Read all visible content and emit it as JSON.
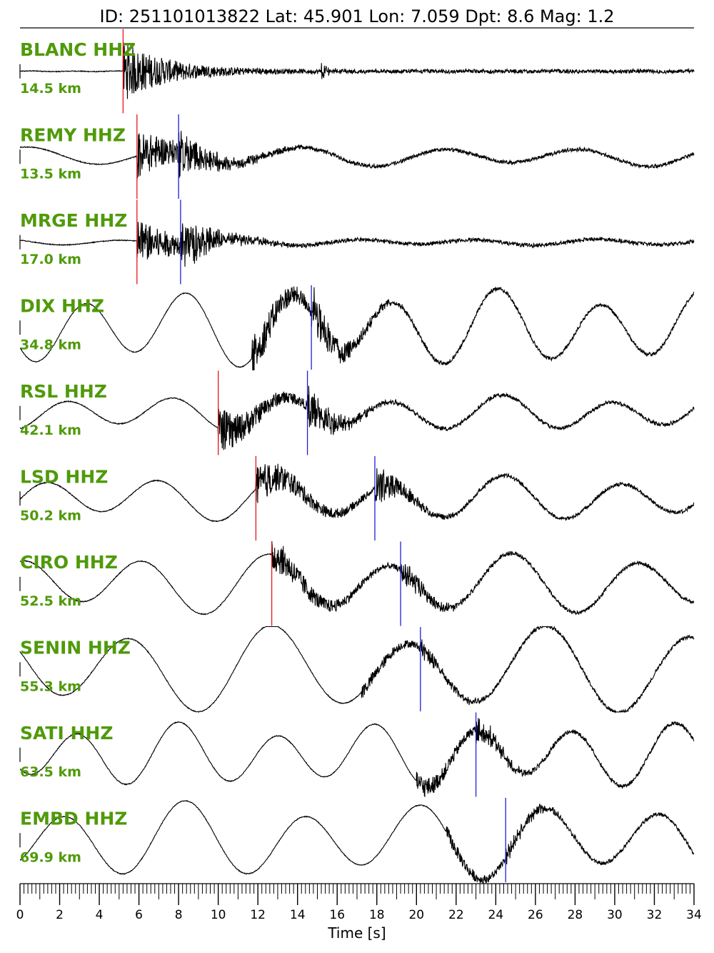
{
  "header": {
    "title": "ID: 251101013822 Lat:  45.901 Lon:   7.059 Dpt:     8.6 Mag:   1.2"
  },
  "colors": {
    "station_label": "#4f9a0a",
    "p_pick": "#e8141b",
    "s_pick": "#1f1fdc",
    "trace": "#000000"
  },
  "chart_data": {
    "type": "line",
    "title": "ID: 251101013822 Lat:  45.901 Lon:   7.059 Dpt:     8.6 Mag:   1.2",
    "xlabel": "Time [s]",
    "ylabel": "",
    "xlim": [
      0,
      34
    ],
    "x_ticks": [
      "0",
      "2",
      "4",
      "6",
      "8",
      "10",
      "12",
      "14",
      "16",
      "18",
      "20",
      "22",
      "24",
      "26",
      "28",
      "30",
      "32",
      "34"
    ],
    "minor_tick_step": 0.2,
    "grid": false,
    "series": [
      {
        "name": "BLANC HHZ",
        "distance": "14.5 km",
        "p_pick": 5.2,
        "s_pick": null
      },
      {
        "name": "REMY HHZ",
        "distance": "13.5 km",
        "p_pick": 5.9,
        "s_pick": 8.0
      },
      {
        "name": "MRGE HHZ",
        "distance": "17.0 km",
        "p_pick": 5.9,
        "s_pick": 8.1
      },
      {
        "name": "DIX HHZ",
        "distance": "34.8 km",
        "p_pick": null,
        "s_pick": 14.7
      },
      {
        "name": "RSL HHZ",
        "distance": "42.1 km",
        "p_pick": 10.0,
        "s_pick": 14.5
      },
      {
        "name": "LSD HHZ",
        "distance": "50.2 km",
        "p_pick": 11.9,
        "s_pick": 17.9
      },
      {
        "name": "CIRO HHZ",
        "distance": "52.5 km",
        "p_pick": 12.7,
        "s_pick": 19.2
      },
      {
        "name": "SENIN HHZ",
        "distance": "55.3 km",
        "p_pick": null,
        "s_pick": 20.2
      },
      {
        "name": "SATI HHZ",
        "distance": "63.5 km",
        "p_pick": null,
        "s_pick": 23.0
      },
      {
        "name": "EMBD HHZ",
        "distance": "69.9 km",
        "p_pick": null,
        "s_pick": 24.5
      }
    ]
  }
}
